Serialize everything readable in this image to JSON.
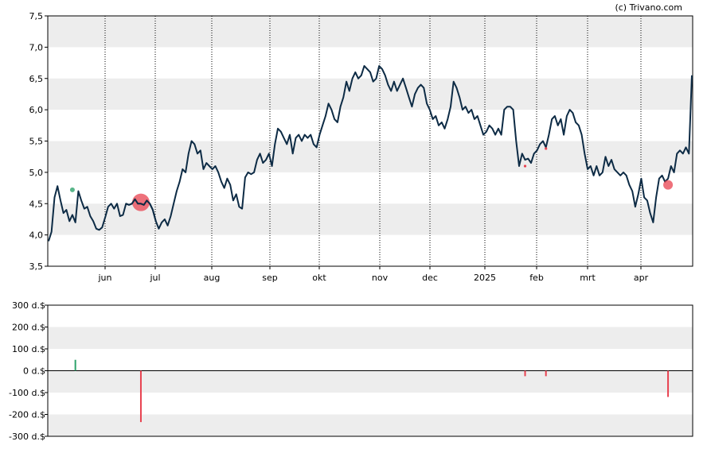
{
  "credit": "(c) Trivano.com",
  "chart_data": [
    {
      "type": "line",
      "ylim": [
        3.5,
        7.5
      ],
      "y_ticks": [
        "3,5",
        "4,0",
        "4,5",
        "5,0",
        "5,5",
        "6,0",
        "6,5",
        "7,0",
        "7,5"
      ],
      "x_ticks": [
        "jun",
        "jul",
        "aug",
        "sep",
        "okt",
        "nov",
        "dec",
        "2025",
        "feb",
        "mrt",
        "apr"
      ],
      "grid": "horizontal bands + vertical dotted month lines",
      "colors": {
        "line": "#0d2b45",
        "band": "#ededed",
        "buy": "#2ea36b",
        "sell": "#e8414f"
      },
      "series": [
        {
          "values": [
            3.9,
            4.05,
            4.6,
            4.78,
            4.55,
            4.35,
            4.4,
            4.22,
            4.32,
            4.2,
            4.7,
            4.55,
            4.42,
            4.45,
            4.3,
            4.22,
            4.1,
            4.08,
            4.12,
            4.28,
            4.45,
            4.5,
            4.42,
            4.5,
            4.3,
            4.32,
            4.5,
            4.48,
            4.5,
            4.57,
            4.5,
            4.5,
            4.48,
            4.55,
            4.5,
            4.4,
            4.22,
            4.1,
            4.2,
            4.25,
            4.15,
            4.3,
            4.5,
            4.7,
            4.85,
            5.05,
            5.0,
            5.3,
            5.5,
            5.45,
            5.3,
            5.35,
            5.05,
            5.15,
            5.1,
            5.05,
            5.1,
            5.0,
            4.85,
            4.75,
            4.9,
            4.8,
            4.55,
            4.65,
            4.45,
            4.42,
            4.92,
            5.0,
            4.97,
            5.0,
            5.2,
            5.3,
            5.15,
            5.2,
            5.3,
            5.1,
            5.45,
            5.7,
            5.65,
            5.55,
            5.45,
            5.6,
            5.3,
            5.55,
            5.6,
            5.5,
            5.6,
            5.55,
            5.6,
            5.45,
            5.4,
            5.6,
            5.75,
            5.9,
            6.1,
            6.0,
            5.85,
            5.8,
            6.05,
            6.2,
            6.45,
            6.3,
            6.5,
            6.6,
            6.5,
            6.55,
            6.7,
            6.65,
            6.6,
            6.45,
            6.5,
            6.7,
            6.65,
            6.55,
            6.4,
            6.3,
            6.45,
            6.3,
            6.4,
            6.5,
            6.35,
            6.2,
            6.05,
            6.25,
            6.35,
            6.4,
            6.35,
            6.1,
            6.0,
            5.85,
            5.9,
            5.75,
            5.8,
            5.7,
            5.85,
            6.05,
            6.45,
            6.35,
            6.2,
            6.0,
            6.05,
            5.95,
            6.0,
            5.85,
            5.9,
            5.75,
            5.6,
            5.65,
            5.75,
            5.7,
            5.6,
            5.7,
            5.6,
            6.0,
            6.05,
            6.05,
            6.0,
            5.5,
            5.1,
            5.3,
            5.2,
            5.22,
            5.15,
            5.3,
            5.35,
            5.45,
            5.5,
            5.4,
            5.6,
            5.85,
            5.9,
            5.75,
            5.85,
            5.6,
            5.9,
            6.0,
            5.95,
            5.8,
            5.75,
            5.6,
            5.3,
            5.05,
            5.1,
            4.95,
            5.1,
            4.95,
            5.0,
            5.25,
            5.1,
            5.2,
            5.05,
            5.0,
            4.95,
            5.0,
            4.95,
            4.8,
            4.7,
            4.45,
            4.65,
            4.9,
            4.6,
            4.55,
            4.35,
            4.2,
            4.6,
            4.9,
            4.95,
            4.85,
            4.9,
            5.1,
            5.0,
            5.3,
            5.35,
            5.3,
            5.4,
            5.3,
            6.55
          ]
        }
      ],
      "markers": [
        {
          "kind": "buy-dot",
          "index": 8,
          "y": 4.72
        },
        {
          "kind": "sell-bubble",
          "index": 31,
          "y": 4.52
        },
        {
          "kind": "sell-dot",
          "index": 160,
          "y": 5.1
        },
        {
          "kind": "sell-dot",
          "index": 167,
          "y": 5.38
        },
        {
          "kind": "sell-dot",
          "index": 208,
          "y": 4.8
        }
      ]
    },
    {
      "type": "bar",
      "ylim": [
        -300,
        300
      ],
      "y_ticks": [
        "300 d.$",
        "200 d.$",
        "100 d.$",
        "0 d.$",
        "-100 d.$",
        "-200 d.$",
        "-300 d.$"
      ],
      "values": [
        {
          "index": 9,
          "value": 50
        },
        {
          "index": 31,
          "value": -235
        },
        {
          "index": 160,
          "value": -25
        },
        {
          "index": 167,
          "value": -25
        },
        {
          "index": 208,
          "value": -120
        }
      ]
    }
  ]
}
